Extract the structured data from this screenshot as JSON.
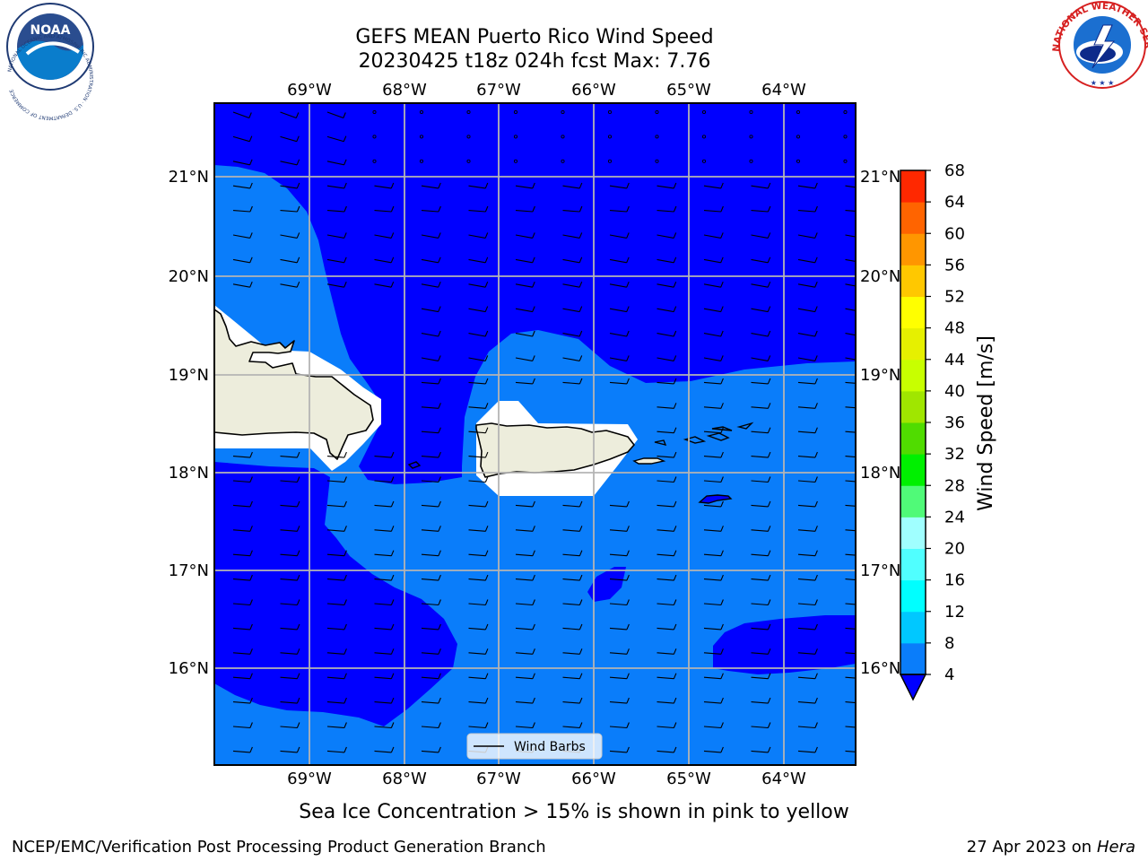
{
  "title": {
    "line1": "GEFS MEAN Puerto Rico Wind Speed",
    "line2": "20230425 t18z 024h fcst   Max: 7.76"
  },
  "map": {
    "lon_labels": [
      "69°W",
      "68°W",
      "67°W",
      "66°W",
      "65°W",
      "64°W"
    ],
    "lat_labels": [
      "21°N",
      "20°N",
      "19°N",
      "18°N",
      "17°N",
      "16°N"
    ],
    "lon_range": [
      -70,
      -63.25
    ],
    "lat_range": [
      15.0,
      21.75
    ],
    "legend_label": "Wind Barbs"
  },
  "colorbar": {
    "label": "Wind Speed [m/s]",
    "ticks": [
      "4",
      "8",
      "12",
      "16",
      "20",
      "24",
      "28",
      "32",
      "36",
      "40",
      "44",
      "48",
      "52",
      "56",
      "60",
      "64",
      "68"
    ],
    "colors": [
      "#0a7dfa",
      "#00c8ff",
      "#00ffff",
      "#50ffff",
      "#a0ffff",
      "#50fa78",
      "#00f000",
      "#50dc00",
      "#a0e600",
      "#c8ff00",
      "#e6f000",
      "#ffff00",
      "#ffc800",
      "#ff9600",
      "#ff6400",
      "#ff2800",
      "#ff0000"
    ],
    "under_color": "#0000ff"
  },
  "footer": {
    "caption": "Sea Ice Concentration > 15% is shown in pink to yellow",
    "org": "NCEP/EMC/Verification Post Processing Product Generation Branch",
    "date": "27 Apr 2023 on ",
    "machine": "Hera"
  },
  "logos": {
    "noaa_text": "NOAA",
    "noaa_ring": "NATIONAL OCEANIC AND ATMOSPHERIC ADMINISTRATION · U.S. DEPARTMENT OF COMMERCE",
    "nws_ring": "NATIONAL WEATHER SERVICE"
  },
  "colors": {
    "sea_light": "#0a7dfa",
    "sea_dark": "#0000ff",
    "land": "#ededdc",
    "grid": "#b4b4b4"
  }
}
